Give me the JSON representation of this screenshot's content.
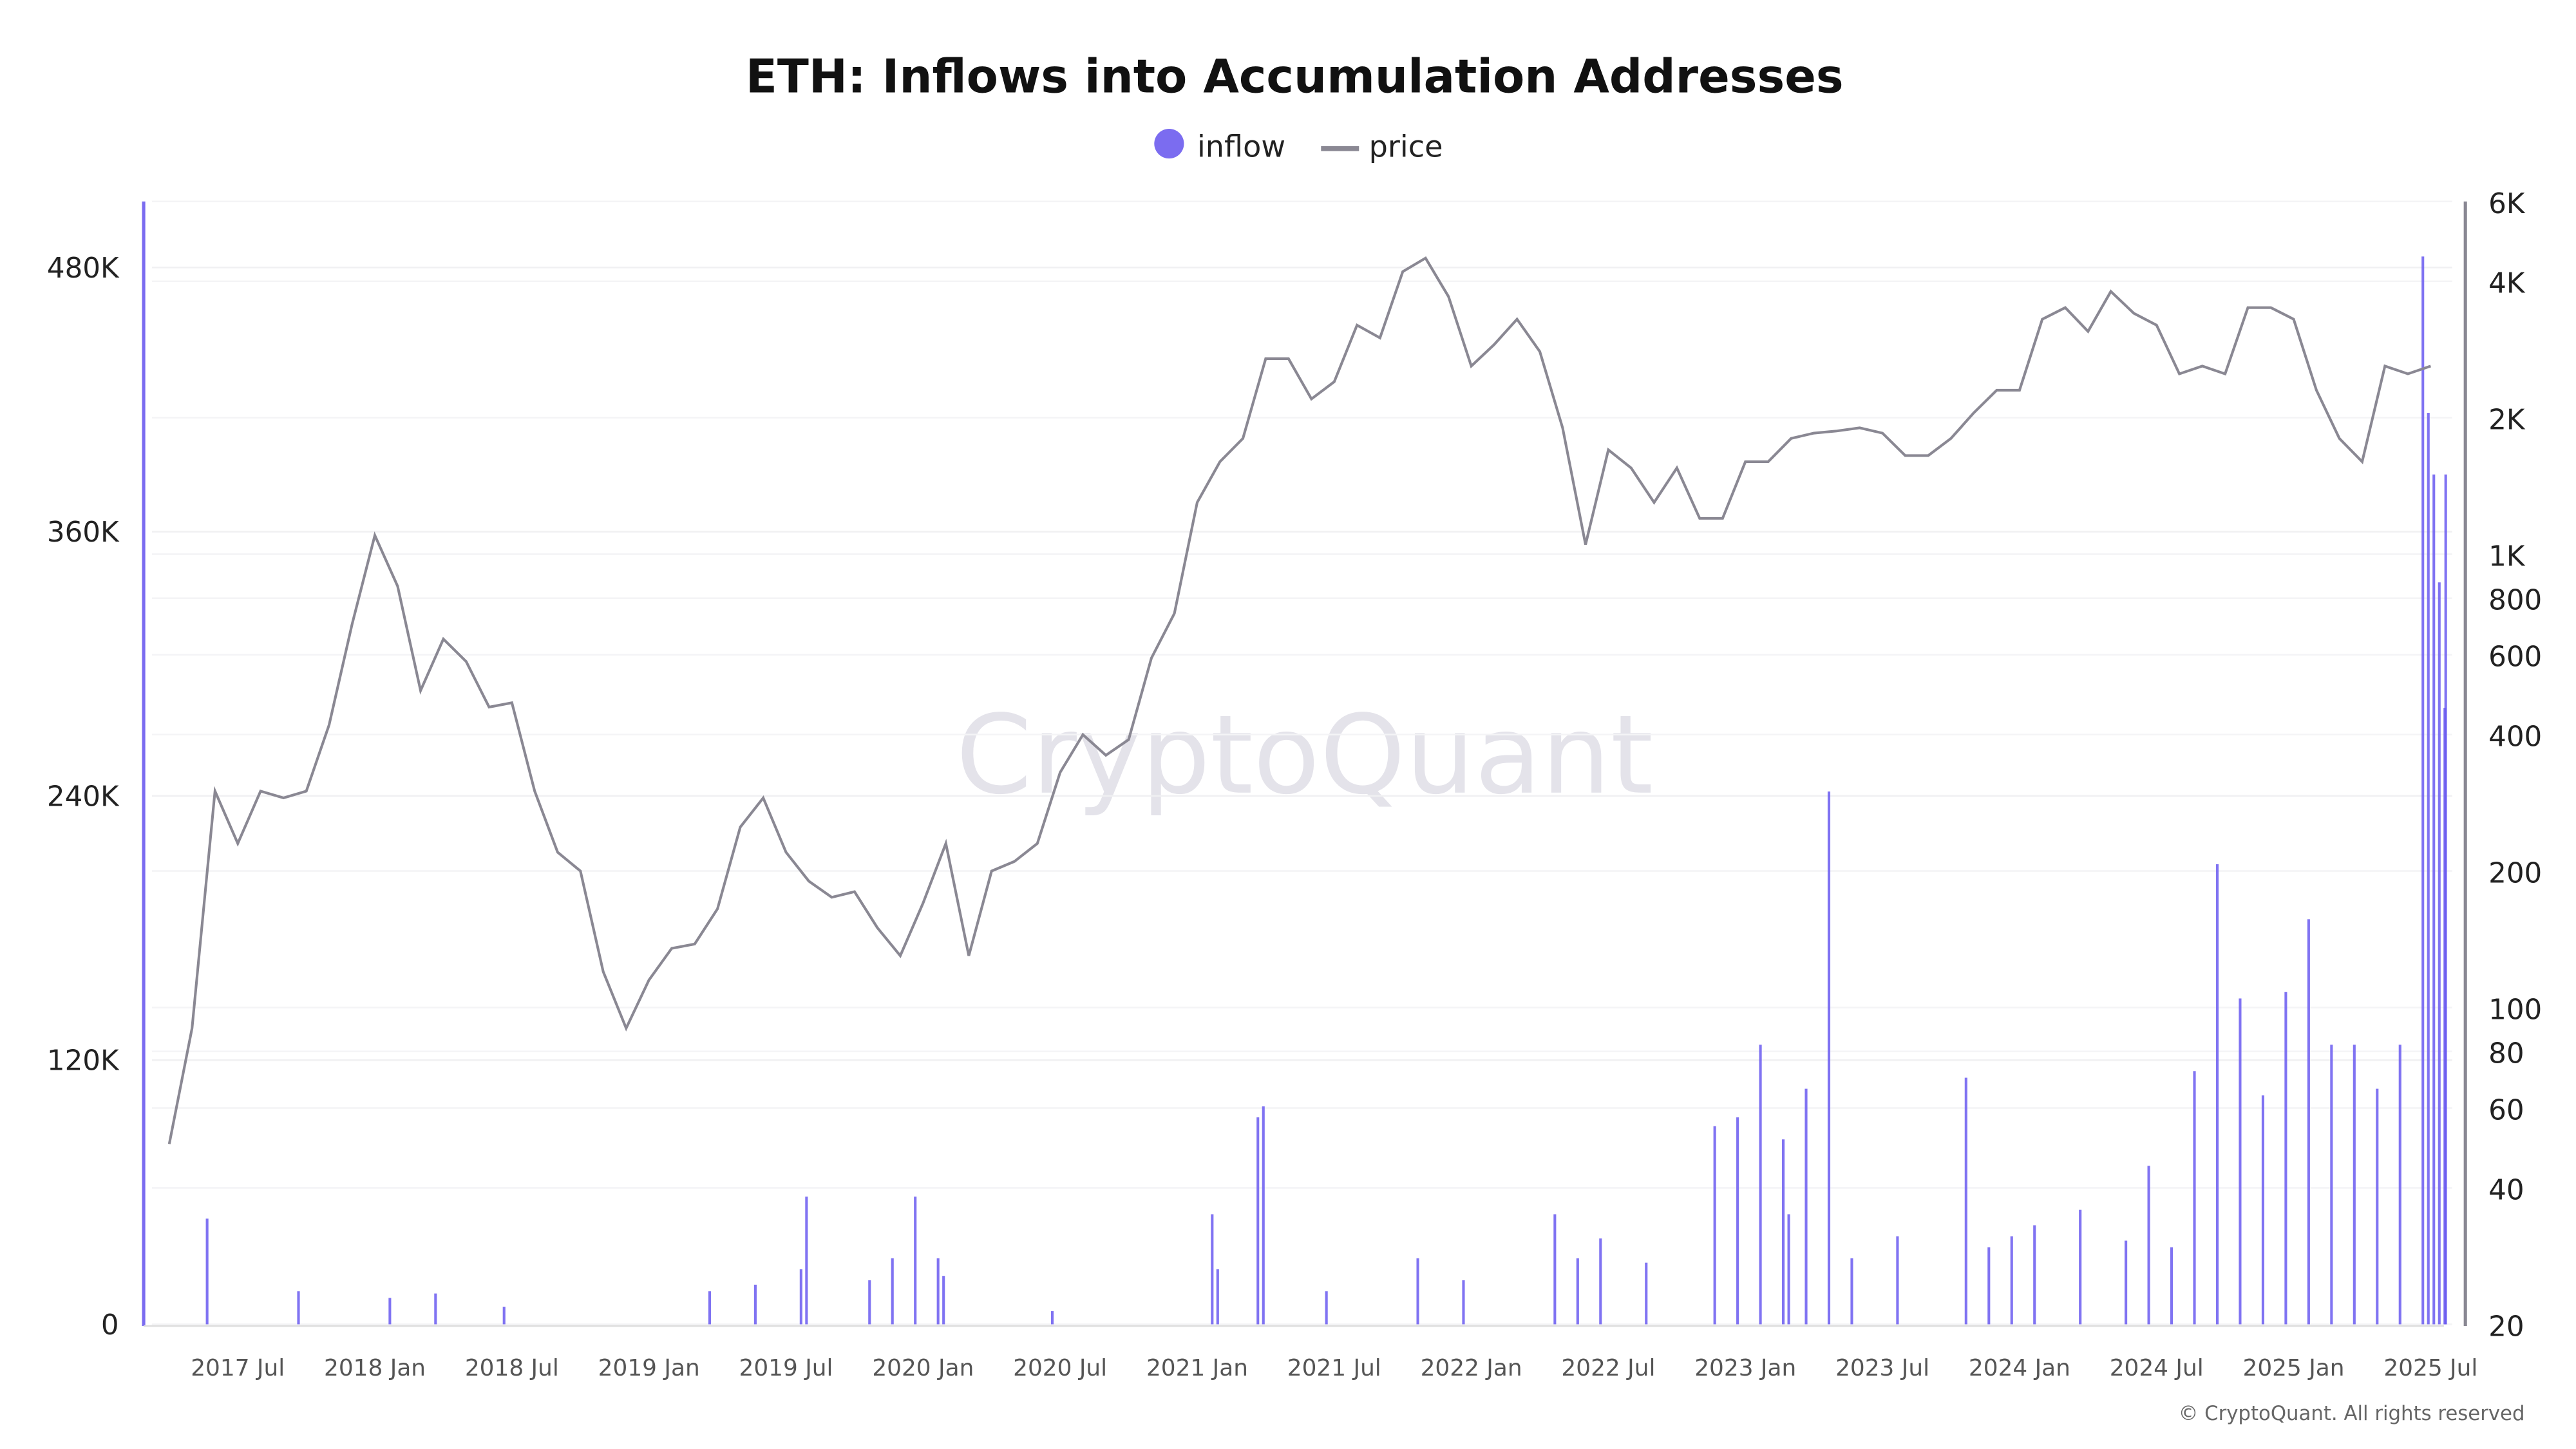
{
  "chart_data": {
    "type": "bar+line",
    "title": "ETH: Inflows into Accumulation Addresses",
    "legend": [
      {
        "name": "inflow",
        "color": "#7b6cf0",
        "marker": "circle"
      },
      {
        "name": "price",
        "color": "#8a8893",
        "marker": "line"
      }
    ],
    "legend_position": "top-center",
    "watermark": "CryptoQuant",
    "footer": "© CryptoQuant. All rights reserved",
    "x_ticks": [
      "2017 Jul",
      "2018 Jan",
      "2018 Jul",
      "2019 Jan",
      "2019 Jul",
      "2020 Jan",
      "2020 Jul",
      "2021 Jan",
      "2021 Jul",
      "2022 Jan",
      "2022 Jul",
      "2023 Jan",
      "2023 Jul",
      "2024 Jan",
      "2024 Jul",
      "2025 Jan",
      "2025 Jul"
    ],
    "y_left": {
      "label": "inflow",
      "ticks": [
        "0",
        "120K",
        "240K",
        "360K",
        "480K"
      ],
      "tick_values": [
        0,
        120,
        240,
        360,
        480
      ],
      "range_k": [
        0,
        510
      ]
    },
    "y_right": {
      "label": "price",
      "scale": "log",
      "ticks": [
        "20",
        "40",
        "60",
        "80",
        "100",
        "200",
        "400",
        "600",
        "800",
        "1K",
        "2K",
        "4K",
        "6K"
      ],
      "tick_values": [
        20,
        40,
        60,
        80,
        100,
        200,
        400,
        600,
        800,
        1000,
        2000,
        4000,
        6000
      ],
      "range": [
        20,
        6000
      ]
    },
    "price_series": {
      "name": "price",
      "start": "2017-04",
      "interval": "month",
      "values": [
        50,
        90,
        300,
        230,
        300,
        290,
        300,
        420,
        700,
        1100,
        850,
        500,
        650,
        580,
        460,
        470,
        300,
        220,
        200,
        120,
        90,
        115,
        135,
        138,
        165,
        250,
        290,
        220,
        190,
        175,
        180,
        150,
        130,
        170,
        230,
        130,
        200,
        210,
        230,
        330,
        400,
        360,
        390,
        590,
        740,
        1300,
        1600,
        1800,
        2700,
        2700,
        2200,
        2400,
        3200,
        3000,
        4200,
        4500,
        3700,
        2600,
        2900,
        3300,
        2800,
        1900,
        1050,
        1700,
        1550,
        1300,
        1550,
        1200,
        1200,
        1600,
        1600,
        1800,
        1850,
        1870,
        1900,
        1850,
        1650,
        1650,
        1800,
        2050,
        2300,
        2300,
        3300,
        3500,
        3100,
        3800,
        3400,
        3200,
        2500,
        2600,
        2500,
        3500,
        3500,
        3300,
        2300,
        1800,
        1600,
        2600,
        2500,
        2600
      ]
    },
    "inflow_series": {
      "name": "inflow",
      "unit": "K ETH",
      "points": [
        [
          "2017-05",
          48
        ],
        [
          "2017-09",
          15
        ],
        [
          "2018-01",
          12
        ],
        [
          "2018-03",
          14
        ],
        [
          "2018-06",
          8
        ],
        [
          "2019-03",
          15
        ],
        [
          "2019-05",
          18
        ],
        [
          "2019-07",
          25
        ],
        [
          "2019-07",
          58
        ],
        [
          "2019-10",
          20
        ],
        [
          "2019-11",
          30
        ],
        [
          "2019-12",
          58
        ],
        [
          "2020-01",
          30
        ],
        [
          "2020-01",
          22
        ],
        [
          "2020-06",
          6
        ],
        [
          "2021-01",
          50
        ],
        [
          "2021-01",
          25
        ],
        [
          "2021-03",
          94
        ],
        [
          "2021-03",
          99
        ],
        [
          "2021-06",
          15
        ],
        [
          "2021-10",
          30
        ],
        [
          "2021-12",
          20
        ],
        [
          "2022-04",
          50
        ],
        [
          "2022-05",
          30
        ],
        [
          "2022-06",
          39
        ],
        [
          "2022-08",
          28
        ],
        [
          "2022-11",
          90
        ],
        [
          "2022-12",
          94
        ],
        [
          "2023-01",
          127
        ],
        [
          "2023-02",
          84
        ],
        [
          "2023-02",
          50
        ],
        [
          "2023-03",
          107
        ],
        [
          "2023-04",
          242
        ],
        [
          "2023-05",
          30
        ],
        [
          "2023-07",
          40
        ],
        [
          "2023-10",
          112
        ],
        [
          "2023-11",
          35
        ],
        [
          "2023-12",
          40
        ],
        [
          "2024-01",
          45
        ],
        [
          "2024-03",
          52
        ],
        [
          "2024-05",
          38
        ],
        [
          "2024-06",
          72
        ],
        [
          "2024-07",
          35
        ],
        [
          "2024-08",
          115
        ],
        [
          "2024-09",
          209
        ],
        [
          "2024-10",
          148
        ],
        [
          "2024-11",
          104
        ],
        [
          "2024-12",
          151
        ],
        [
          "2025-01",
          184
        ],
        [
          "2025-02",
          127
        ],
        [
          "2025-03",
          127
        ],
        [
          "2025-04",
          107
        ],
        [
          "2025-05",
          127
        ],
        [
          "2025-06",
          485
        ],
        [
          "2025-06",
          414
        ],
        [
          "2025-06",
          386
        ],
        [
          "2025-06",
          337
        ],
        [
          "2025-06",
          280
        ],
        [
          "2025-07",
          386
        ]
      ]
    }
  }
}
